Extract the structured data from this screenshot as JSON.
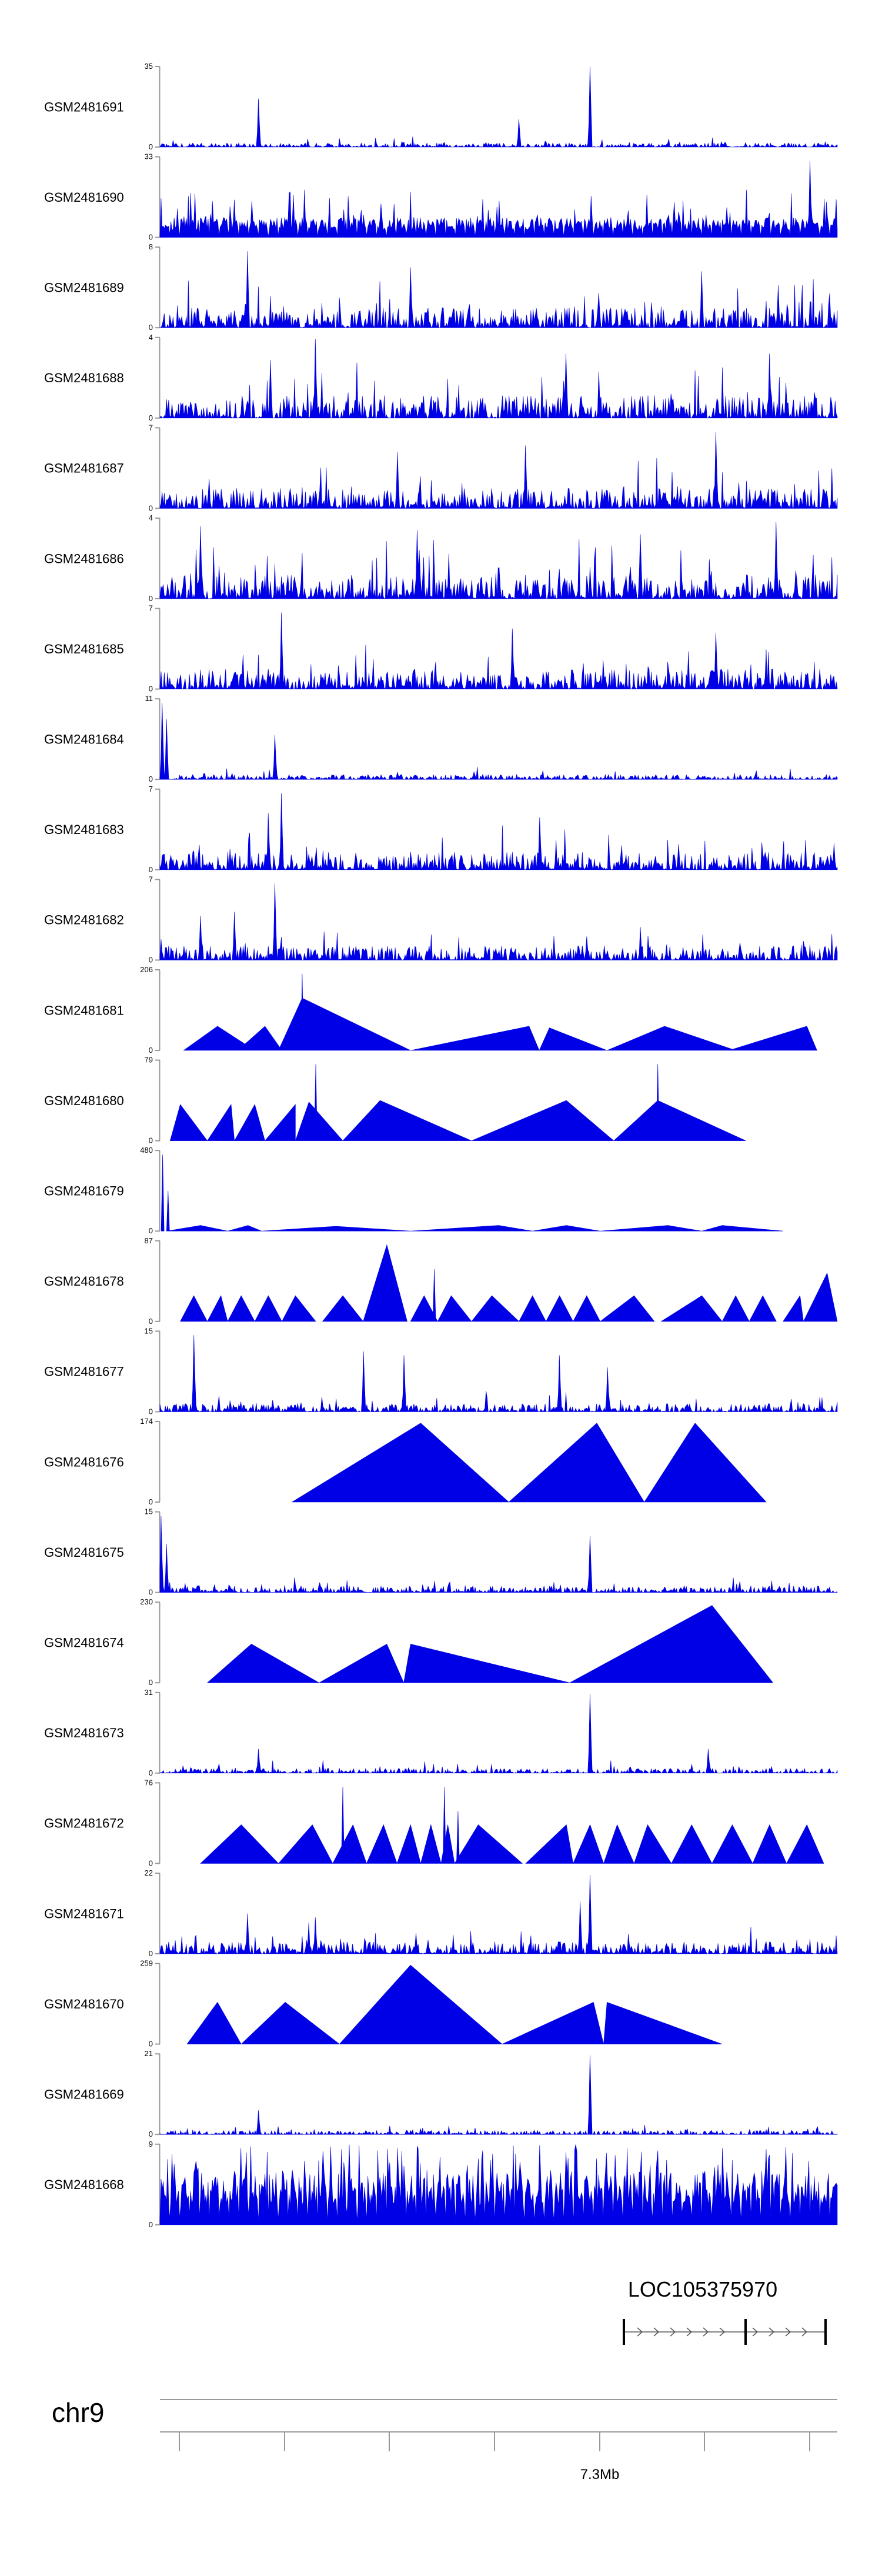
{
  "chart_data": {
    "type": "area",
    "colors": {
      "signal": "#0000e6",
      "axis": "#999999",
      "text": "#000000"
    },
    "tracks": [
      {
        "name": "GSM2481691",
        "ymax": "35",
        "ymin": "0",
        "profile": "dense",
        "seed": 11,
        "base": 0.05,
        "peaks": [
          [
            0.145,
            0.6
          ],
          [
            0.53,
            0.35
          ],
          [
            0.635,
            1.0
          ]
        ]
      },
      {
        "name": "GSM2481690",
        "ymax": "33",
        "ymin": "0",
        "profile": "comb",
        "seed": 12,
        "base": 0.25,
        "peaks": [
          [
            0.135,
            0.45
          ],
          [
            0.19,
            0.55
          ],
          [
            0.5,
            0.35
          ],
          [
            0.96,
            0.95
          ]
        ]
      },
      {
        "name": "GSM2481689",
        "ymax": "8",
        "ymin": "0",
        "profile": "dense",
        "seed": 13,
        "base": 0.25,
        "peaks": [
          [
            0.13,
            0.95
          ],
          [
            0.37,
            0.75
          ],
          [
            0.8,
            0.7
          ]
        ]
      },
      {
        "name": "GSM2481688",
        "ymax": "4",
        "ymin": "0",
        "profile": "dense",
        "seed": 14,
        "base": 0.28,
        "peaks": [
          [
            0.23,
            0.98
          ],
          [
            0.6,
            0.8
          ],
          [
            0.9,
            0.8
          ]
        ]
      },
      {
        "name": "GSM2481687",
        "ymax": "7",
        "ymin": "0",
        "profile": "dense",
        "seed": 15,
        "base": 0.25,
        "peaks": [
          [
            0.54,
            0.78
          ],
          [
            0.82,
            0.95
          ],
          [
            0.35,
            0.7
          ]
        ]
      },
      {
        "name": "GSM2481686",
        "ymax": "4",
        "ymin": "0",
        "profile": "dense",
        "seed": 16,
        "base": 0.3,
        "peaks": [
          [
            0.06,
            0.9
          ],
          [
            0.38,
            0.85
          ],
          [
            0.71,
            0.8
          ],
          [
            0.91,
            0.95
          ]
        ]
      },
      {
        "name": "GSM2481685",
        "ymax": "7",
        "ymin": "0",
        "profile": "dense",
        "seed": 17,
        "base": 0.25,
        "peaks": [
          [
            0.18,
            0.95
          ],
          [
            0.52,
            0.75
          ],
          [
            0.82,
            0.7
          ]
        ]
      },
      {
        "name": "GSM2481684",
        "ymax": "11",
        "ymin": "0",
        "profile": "dense",
        "seed": 18,
        "base": 0.06,
        "peaks": [
          [
            0.003,
            0.95
          ],
          [
            0.01,
            0.75
          ],
          [
            0.17,
            0.55
          ]
        ]
      },
      {
        "name": "GSM2481683",
        "ymax": "7",
        "ymin": "0",
        "profile": "dense",
        "seed": 19,
        "base": 0.22,
        "peaks": [
          [
            0.18,
            0.95
          ],
          [
            0.16,
            0.7
          ],
          [
            0.56,
            0.65
          ]
        ]
      },
      {
        "name": "GSM2481682",
        "ymax": "7",
        "ymin": "0",
        "profile": "dense",
        "seed": 20,
        "base": 0.18,
        "peaks": [
          [
            0.17,
            0.95
          ],
          [
            0.11,
            0.6
          ],
          [
            0.06,
            0.55
          ]
        ]
      },
      {
        "name": "GSM2481681",
        "ymax": "206",
        "ymin": "0",
        "profile": "tri",
        "seed": 21,
        "tris": [
          [
            0.035,
            0.085,
            0.14,
            0.3
          ],
          [
            0.115,
            0.155,
            0.18,
            0.3
          ],
          [
            0.175,
            0.21,
            0.37,
            0.65
          ],
          [
            0.37,
            0.545,
            0.56,
            0.3
          ],
          [
            0.56,
            0.575,
            0.66,
            0.28
          ],
          [
            0.66,
            0.745,
            0.85,
            0.3
          ],
          [
            0.84,
            0.955,
            0.97,
            0.3
          ]
        ],
        "spikes": [
          [
            0.21,
            0.95
          ]
        ]
      },
      {
        "name": "GSM2481680",
        "ymax": "79",
        "ymin": "0",
        "profile": "tri",
        "seed": 22,
        "tris": [
          [
            0.015,
            0.03,
            0.07,
            0.45
          ],
          [
            0.07,
            0.105,
            0.11,
            0.45
          ],
          [
            0.11,
            0.14,
            0.155,
            0.45
          ],
          [
            0.155,
            0.2,
            0.2,
            0.45
          ],
          [
            0.2,
            0.22,
            0.27,
            0.48
          ],
          [
            0.27,
            0.325,
            0.46,
            0.5
          ],
          [
            0.46,
            0.6,
            0.67,
            0.5
          ],
          [
            0.67,
            0.735,
            0.865,
            0.5
          ]
        ],
        "spikes": [
          [
            0.23,
            0.95
          ],
          [
            0.735,
            0.95
          ]
        ]
      },
      {
        "name": "GSM2481679",
        "ymax": "480",
        "ymin": "0",
        "profile": "tri",
        "seed": 23,
        "tris": [
          [
            0.01,
            0.06,
            0.1,
            0.07
          ],
          [
            0.1,
            0.13,
            0.15,
            0.07
          ],
          [
            0.15,
            0.26,
            0.37,
            0.06
          ],
          [
            0.37,
            0.5,
            0.55,
            0.07
          ],
          [
            0.55,
            0.6,
            0.65,
            0.07
          ],
          [
            0.65,
            0.75,
            0.8,
            0.07
          ],
          [
            0.8,
            0.83,
            0.92,
            0.07
          ]
        ],
        "spikes": [
          [
            0.004,
            0.95
          ],
          [
            0.012,
            0.5
          ]
        ]
      },
      {
        "name": "GSM2481678",
        "ymax": "87",
        "ymin": "0",
        "profile": "tri",
        "seed": 24,
        "tris": [
          [
            0.03,
            0.05,
            0.07,
            0.32
          ],
          [
            0.07,
            0.09,
            0.1,
            0.32
          ],
          [
            0.1,
            0.12,
            0.14,
            0.32
          ],
          [
            0.14,
            0.16,
            0.18,
            0.32
          ],
          [
            0.18,
            0.2,
            0.23,
            0.32
          ],
          [
            0.24,
            0.27,
            0.3,
            0.32
          ],
          [
            0.3,
            0.335,
            0.365,
            0.95
          ],
          [
            0.37,
            0.39,
            0.41,
            0.32
          ],
          [
            0.41,
            0.43,
            0.46,
            0.32
          ],
          [
            0.46,
            0.49,
            0.53,
            0.32
          ],
          [
            0.53,
            0.55,
            0.57,
            0.32
          ],
          [
            0.57,
            0.59,
            0.61,
            0.32
          ],
          [
            0.61,
            0.63,
            0.65,
            0.32
          ],
          [
            0.65,
            0.7,
            0.73,
            0.32
          ],
          [
            0.74,
            0.8,
            0.83,
            0.32
          ],
          [
            0.83,
            0.85,
            0.87,
            0.32
          ],
          [
            0.87,
            0.89,
            0.91,
            0.32
          ],
          [
            0.92,
            0.945,
            0.95,
            0.32
          ],
          [
            0.95,
            0.985,
            1.0,
            0.6
          ]
        ],
        "spikes": [
          [
            0.405,
            0.65
          ]
        ]
      },
      {
        "name": "GSM2481677",
        "ymax": "15",
        "ymin": "0",
        "profile": "dense",
        "seed": 25,
        "base": 0.1,
        "peaks": [
          [
            0.05,
            0.95
          ],
          [
            0.3,
            0.75
          ],
          [
            0.36,
            0.7
          ],
          [
            0.59,
            0.7
          ],
          [
            0.66,
            0.55
          ]
        ]
      },
      {
        "name": "GSM2481676",
        "ymax": "174",
        "ymin": "0",
        "profile": "tri",
        "seed": 26,
        "tris": [
          [
            0.195,
            0.385,
            0.515,
            0.98
          ],
          [
            0.515,
            0.645,
            0.715,
            0.98
          ],
          [
            0.715,
            0.79,
            0.895,
            0.98
          ]
        ],
        "spikes": []
      },
      {
        "name": "GSM2481675",
        "ymax": "15",
        "ymin": "0",
        "profile": "dense",
        "seed": 27,
        "base": 0.08,
        "peaks": [
          [
            0.002,
            0.95
          ],
          [
            0.635,
            0.7
          ],
          [
            0.01,
            0.6
          ]
        ]
      },
      {
        "name": "GSM2481674",
        "ymax": "230",
        "ymin": "0",
        "profile": "tri",
        "seed": 28,
        "tris": [
          [
            0.07,
            0.135,
            0.235,
            0.48
          ],
          [
            0.235,
            0.335,
            0.36,
            0.48
          ],
          [
            0.36,
            0.37,
            0.605,
            0.48
          ],
          [
            0.605,
            0.815,
            0.905,
            0.96
          ]
        ],
        "spikes": []
      },
      {
        "name": "GSM2481673",
        "ymax": "31",
        "ymin": "0",
        "profile": "dense",
        "seed": 29,
        "base": 0.06,
        "peaks": [
          [
            0.635,
            0.98
          ],
          [
            0.145,
            0.3
          ],
          [
            0.81,
            0.3
          ]
        ]
      },
      {
        "name": "GSM2481672",
        "ymax": "76",
        "ymin": "0",
        "profile": "tri",
        "seed": 30,
        "tris": [
          [
            0.06,
            0.12,
            0.175,
            0.48
          ],
          [
            0.175,
            0.225,
            0.255,
            0.48
          ],
          [
            0.255,
            0.285,
            0.305,
            0.48
          ],
          [
            0.305,
            0.33,
            0.35,
            0.48
          ],
          [
            0.35,
            0.37,
            0.385,
            0.48
          ],
          [
            0.385,
            0.4,
            0.415,
            0.48
          ],
          [
            0.415,
            0.425,
            0.435,
            0.48
          ],
          [
            0.435,
            0.47,
            0.535,
            0.48
          ],
          [
            0.54,
            0.6,
            0.61,
            0.48
          ],
          [
            0.61,
            0.635,
            0.655,
            0.48
          ],
          [
            0.655,
            0.675,
            0.7,
            0.48
          ],
          [
            0.7,
            0.72,
            0.755,
            0.48
          ],
          [
            0.755,
            0.785,
            0.815,
            0.48
          ],
          [
            0.815,
            0.845,
            0.875,
            0.48
          ],
          [
            0.875,
            0.9,
            0.925,
            0.48
          ],
          [
            0.925,
            0.955,
            0.98,
            0.48
          ]
        ],
        "spikes": [
          [
            0.27,
            0.95
          ],
          [
            0.42,
            0.95
          ],
          [
            0.44,
            0.65
          ]
        ]
      },
      {
        "name": "GSM2481671",
        "ymax": "22",
        "ymin": "0",
        "profile": "dense",
        "seed": 31,
        "base": 0.15,
        "peaks": [
          [
            0.635,
            0.98
          ],
          [
            0.62,
            0.65
          ],
          [
            0.13,
            0.5
          ],
          [
            0.23,
            0.45
          ]
        ]
      },
      {
        "name": "GSM2481670",
        "ymax": "259",
        "ymin": "0",
        "profile": "tri",
        "seed": 32,
        "tris": [
          [
            0.04,
            0.085,
            0.12,
            0.52
          ],
          [
            0.12,
            0.185,
            0.265,
            0.52
          ],
          [
            0.265,
            0.37,
            0.505,
            0.98
          ],
          [
            0.505,
            0.64,
            0.655,
            0.52
          ],
          [
            0.655,
            0.66,
            0.83,
            0.52
          ]
        ],
        "spikes": []
      },
      {
        "name": "GSM2481669",
        "ymax": "21",
        "ymin": "0",
        "profile": "dense",
        "seed": 33,
        "base": 0.05,
        "peaks": [
          [
            0.635,
            0.98
          ],
          [
            0.145,
            0.3
          ]
        ]
      },
      {
        "name": "GSM2481668",
        "ymax": "9",
        "ymin": "0",
        "profile": "comb",
        "seed": 34,
        "base": 0.65,
        "peaks": [
          [
            0.12,
            0.95
          ],
          [
            0.35,
            0.95
          ],
          [
            0.6,
            0.9
          ],
          [
            0.83,
            0.95
          ]
        ]
      }
    ],
    "gene": {
      "name": "LOC105375970"
    },
    "chromosome": {
      "name": "chr9",
      "tick_label": "7.3Mb"
    }
  }
}
